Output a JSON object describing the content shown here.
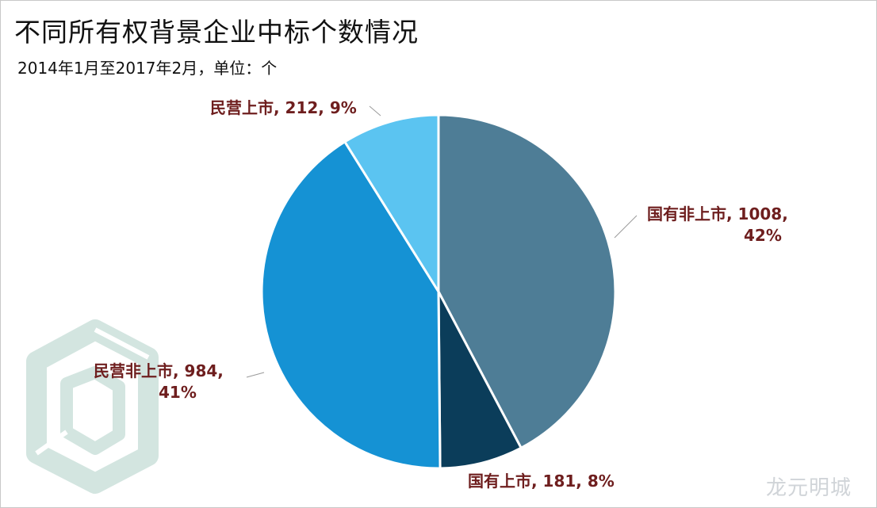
{
  "title": "不同所有权背景企业中标个数情况",
  "subtitle": "2014年1月至2017年2月，单位：个",
  "watermark": "龙元明城",
  "colors": {
    "label_text": "#6e1e1e",
    "leader_line": "#9a9a9a",
    "slice_border": "#ffffff",
    "logo": "#d3e5e0"
  },
  "chart_data": {
    "type": "pie",
    "title": "不同所有权背景企业中标个数情况",
    "subtitle": "2014年1月至2017年2月，单位：个",
    "slices": [
      {
        "category": "国有非上市",
        "value": 1008,
        "percent": "42%",
        "color": "#4e7d96",
        "label_lines": [
          "国有非上市, 1008,",
          "42%"
        ]
      },
      {
        "category": "国有上市",
        "value": 181,
        "percent": "8%",
        "color": "#0b3d5a",
        "label_lines": [
          "国有上市, 181, 8%"
        ]
      },
      {
        "category": "民营非上市",
        "value": 984,
        "percent": "41%",
        "color": "#1592d4",
        "label_lines": [
          "民营非上市, 984,",
          "41%"
        ]
      },
      {
        "category": "民营上市",
        "value": 212,
        "percent": "9%",
        "color": "#5bc4f1",
        "label_lines": [
          "民营上市, 212, 9%"
        ]
      }
    ]
  }
}
